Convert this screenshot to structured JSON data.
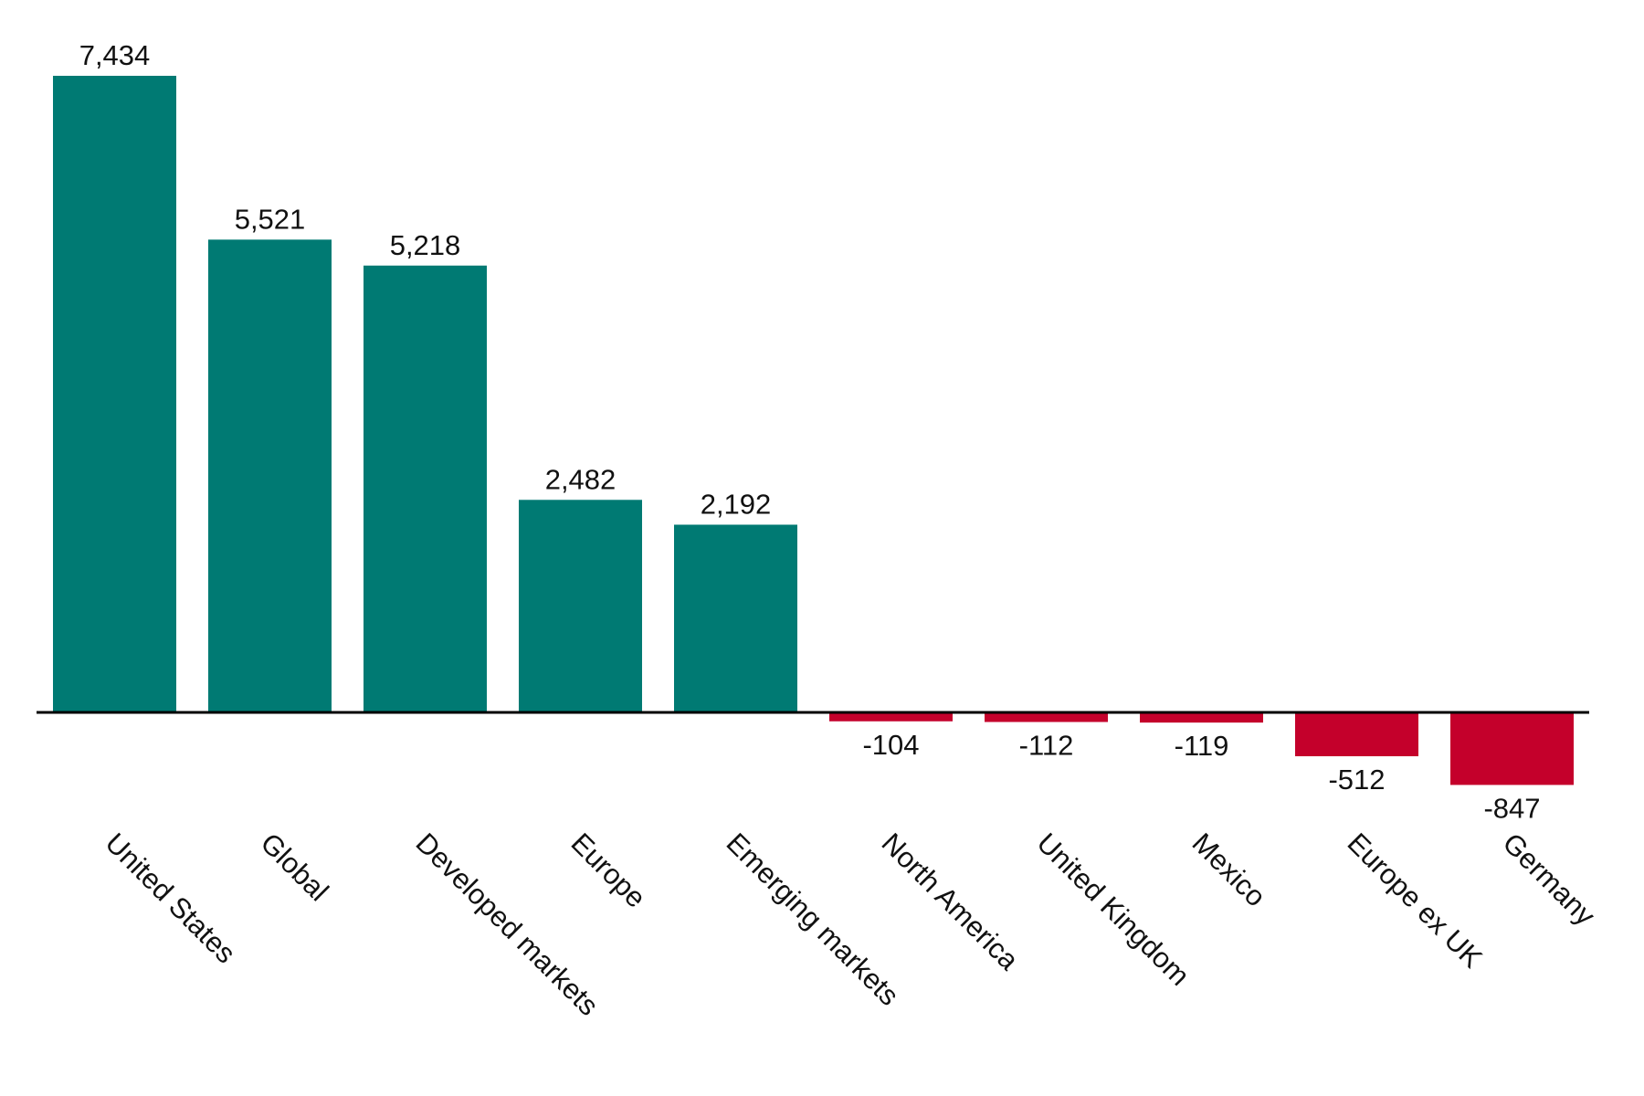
{
  "chart_data": {
    "type": "bar",
    "title": "",
    "xlabel": "",
    "ylabel": "",
    "categories": [
      "United States",
      "Global",
      "Developed markets",
      "Europe",
      "Emerging markets",
      "North America",
      "United Kingdom",
      "Mexico",
      "Europe ex UK",
      "Germany"
    ],
    "values": [
      7434,
      5521,
      5218,
      2482,
      2192,
      -104,
      -112,
      -119,
      -512,
      -847
    ],
    "value_labels": [
      "7,434",
      "5,521",
      "5,218",
      "2,482",
      "2,192",
      "-104",
      "-112",
      "-119",
      "-512",
      "-847"
    ],
    "ylim": [
      -900,
      7600
    ],
    "grid": false,
    "legend": "none",
    "colors": {
      "positive": "#007A73",
      "negative": "#C4002B",
      "axis": "#000000"
    }
  }
}
